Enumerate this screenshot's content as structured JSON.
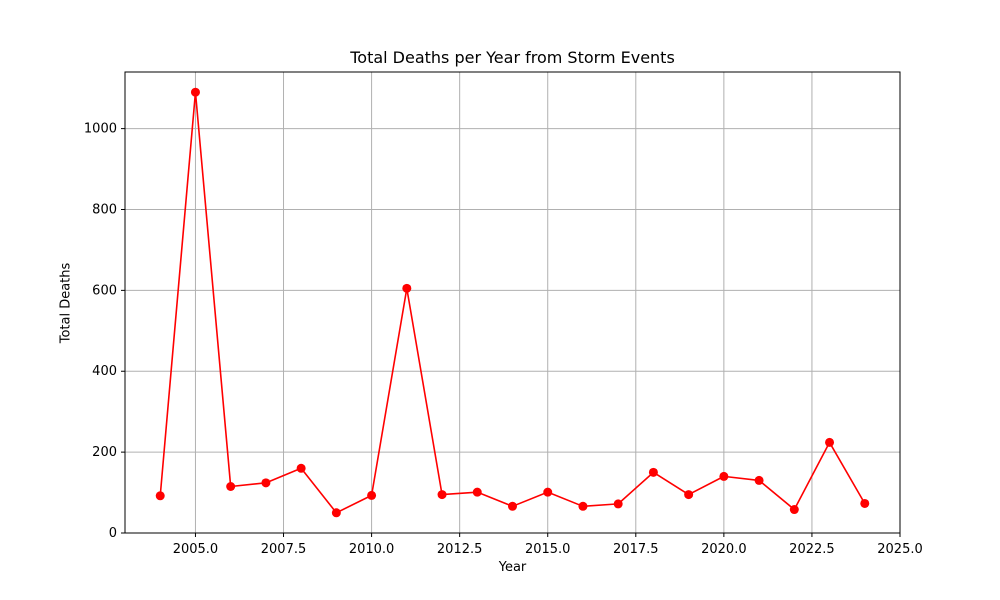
{
  "chart_data": {
    "type": "line",
    "title": "Total Deaths per Year from Storm Events",
    "xlabel": "Year",
    "ylabel": "Total Deaths",
    "xlim": [
      2003.0,
      2025.0
    ],
    "ylim": [
      0,
      1140
    ],
    "xticks": [
      2005.0,
      2007.5,
      2010.0,
      2012.5,
      2015.0,
      2017.5,
      2020.0,
      2022.5,
      2025.0
    ],
    "xtick_labels": [
      "2005.0",
      "2007.5",
      "2010.0",
      "2012.5",
      "2015.0",
      "2017.5",
      "2020.0",
      "2022.5",
      "2025.0"
    ],
    "yticks": [
      0,
      200,
      400,
      600,
      800,
      1000
    ],
    "ytick_labels": [
      "0",
      "200",
      "400",
      "600",
      "800",
      "1000"
    ],
    "grid": true,
    "color": "#ff0000",
    "marker": "circle",
    "series": [
      {
        "x": [
          2004,
          2005,
          2006,
          2007,
          2008,
          2009,
          2010,
          2011,
          2012,
          2013,
          2014,
          2015,
          2016,
          2017,
          2018,
          2019,
          2020,
          2021,
          2022,
          2023,
          2024
        ],
        "values": [
          92,
          1090,
          115,
          124,
          160,
          50,
          93,
          605,
          95,
          101,
          66,
          101,
          66,
          72,
          150,
          95,
          140,
          130,
          58,
          224,
          73
        ]
      }
    ]
  }
}
